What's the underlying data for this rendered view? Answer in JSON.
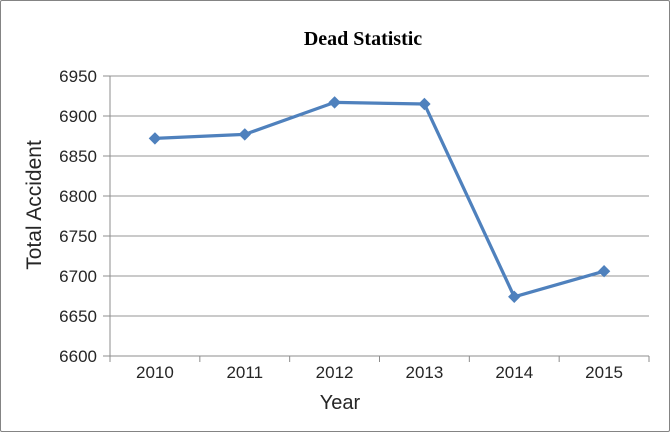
{
  "window": {
    "background": "#ffffff",
    "border_color": "#848484"
  },
  "chart_data": {
    "type": "line",
    "title": "Dead Statistic",
    "xlabel": "Year",
    "ylabel": "Total Accident",
    "categories": [
      "2010",
      "2011",
      "2012",
      "2013",
      "2014",
      "2015"
    ],
    "series": [
      {
        "name": "Dead Statistic",
        "values": [
          6872,
          6877,
          6917,
          6915,
          6674,
          6706
        ]
      }
    ],
    "ylim": [
      6600,
      6950
    ],
    "ytick_step": 50,
    "yticks": [
      6600,
      6650,
      6700,
      6750,
      6800,
      6850,
      6900,
      6950
    ],
    "grid": true,
    "legend": "none",
    "marker": "diamond",
    "colors": {
      "series": "#4F81BD",
      "gridline": "#969696",
      "axis": "#8C8C8C",
      "tick_text": "#262626",
      "title_text": "#000000"
    }
  }
}
